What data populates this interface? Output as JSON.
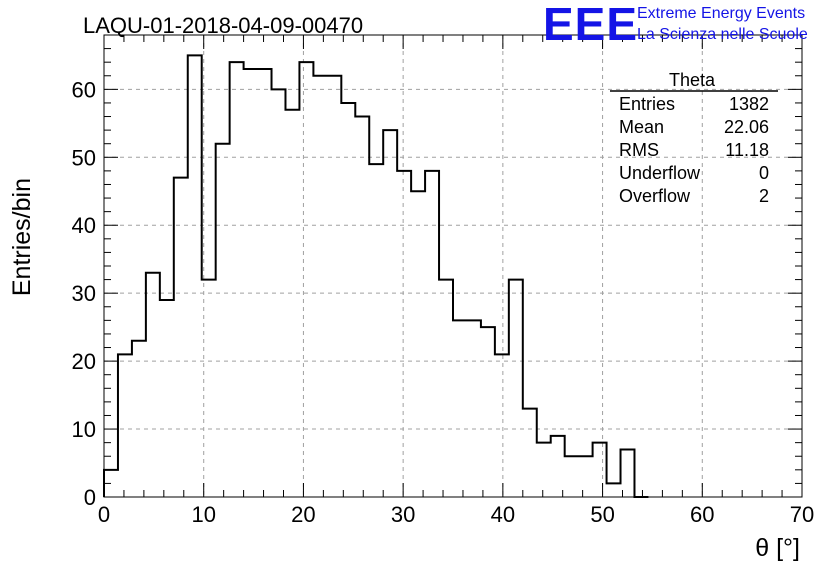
{
  "title": "LAQU-01-2018-04-09-00470",
  "logo": {
    "mark": "EEE",
    "line1": "Extreme Energy Events",
    "line2": "La Scienza nelle Scuole",
    "color": "#1414e6"
  },
  "stats_box": {
    "name": "Theta",
    "rows": [
      {
        "label": "Entries",
        "value": "1382"
      },
      {
        "label": "Mean",
        "value": "22.06"
      },
      {
        "label": "RMS",
        "value": "11.18"
      },
      {
        "label": "Underflow",
        "value": "0"
      },
      {
        "label": "Overflow",
        "value": "2"
      }
    ]
  },
  "chart_data": {
    "type": "bar",
    "style": "step-histogram",
    "xlabel": "θ [°]",
    "ylabel": "Entries/bin",
    "xlim": [
      0,
      70
    ],
    "ylim": [
      0,
      68
    ],
    "xticks": [
      0,
      10,
      20,
      30,
      40,
      50,
      60,
      70
    ],
    "yticks": [
      0,
      10,
      20,
      30,
      40,
      50,
      60
    ],
    "grid": true,
    "bin_width": 1.4,
    "bin_edges_start": 0,
    "values": [
      4,
      21,
      23,
      33,
      29,
      47,
      65,
      32,
      52,
      64,
      63,
      63,
      60,
      57,
      64,
      62,
      62,
      58,
      56,
      49,
      54,
      48,
      45,
      48,
      32,
      26,
      26,
      25,
      21,
      32,
      13,
      8,
      9,
      6,
      6,
      8,
      2,
      7,
      0
    ]
  }
}
